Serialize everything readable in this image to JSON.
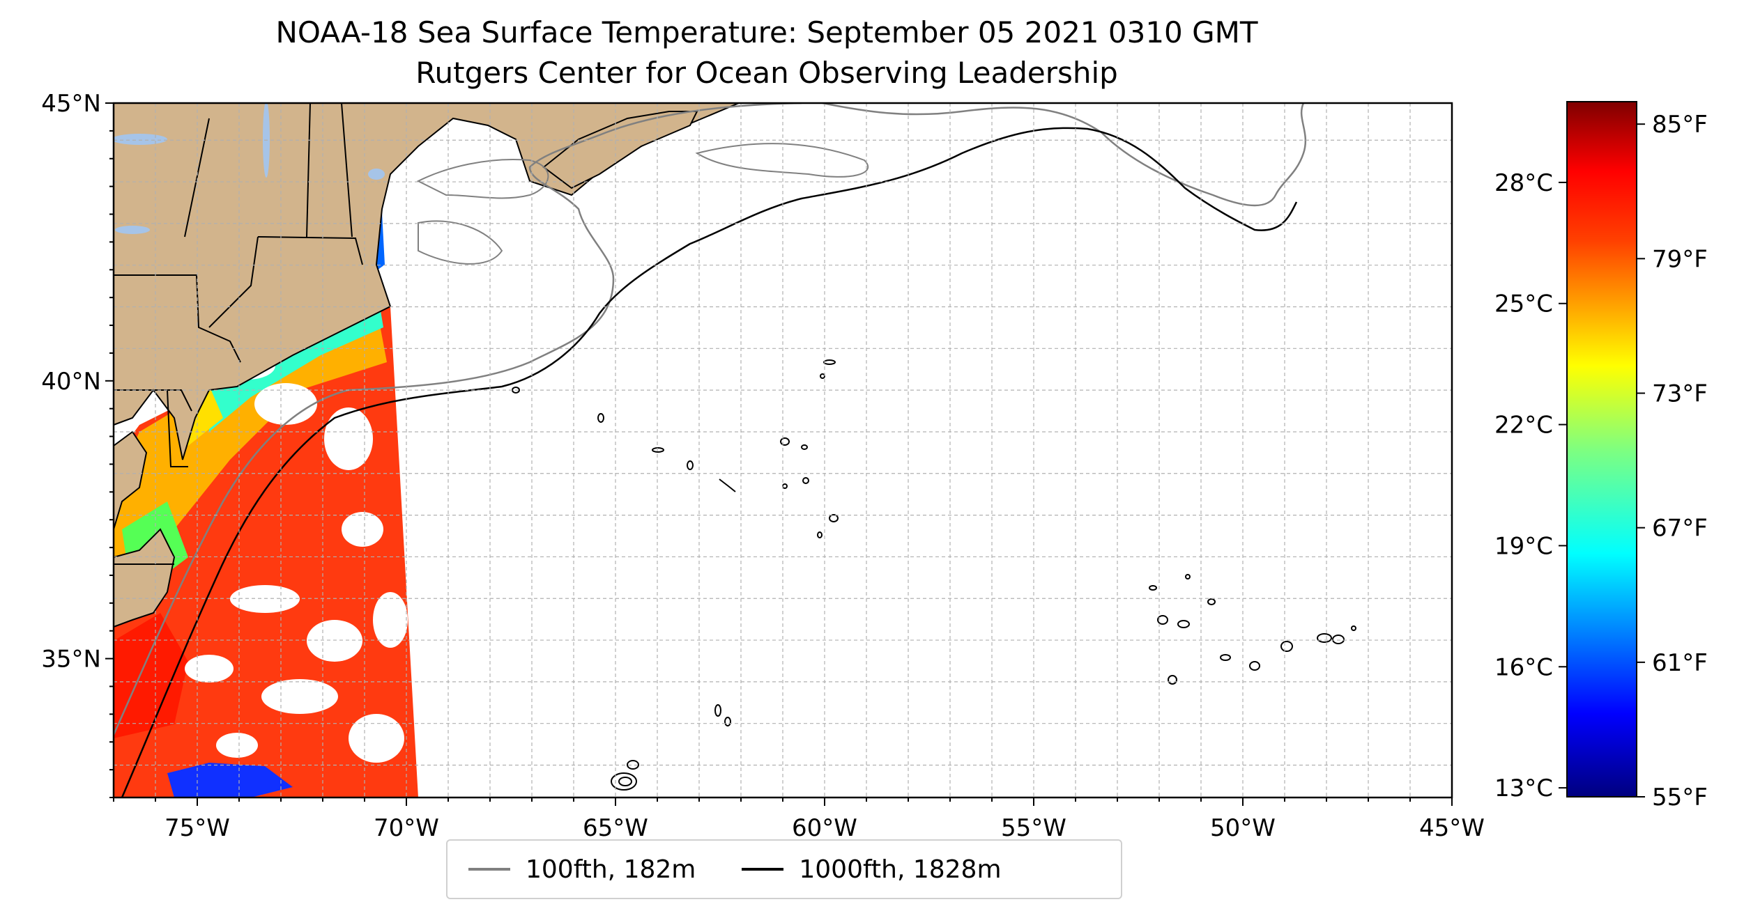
{
  "title": {
    "line1": "NOAA-18 Sea Surface Temperature: September 05 2021 0310 GMT",
    "line2": "Rutgers Center for Ocean Observing Leadership"
  },
  "map": {
    "lon_range": [
      -77,
      -45
    ],
    "lat_range": [
      32.5,
      45
    ],
    "lon_ticks": [
      -75,
      -70,
      -65,
      -60,
      -55,
      -50,
      -45
    ],
    "lon_tick_labels": [
      "75°W",
      "70°W",
      "65°W",
      "60°W",
      "55°W",
      "50°W",
      "45°W"
    ],
    "lat_ticks": [
      35,
      40,
      45
    ],
    "lat_tick_labels": [
      "35°N",
      "40°N",
      "45°N"
    ],
    "gridlines": true,
    "land_color": "#d2b48c",
    "lake_color": "#a6c4e8"
  },
  "colorbar": {
    "colormap": "jet",
    "range_f": [
      55,
      86
    ],
    "celsius_ticks": [
      13,
      16,
      19,
      22,
      25,
      28
    ],
    "celsius_labels": [
      "13°C",
      "16°C",
      "19°C",
      "22°C",
      "25°C",
      "28°C"
    ],
    "fahrenheit_ticks": [
      55,
      61,
      67,
      73,
      79,
      85
    ],
    "fahrenheit_labels": [
      "55°F",
      "61°F",
      "67°F",
      "73°F",
      "79°F",
      "85°F"
    ]
  },
  "legend": {
    "items": [
      {
        "label": "100fth, 182m",
        "color": "#808080"
      },
      {
        "label": "1000fth, 1828m",
        "color": "#000000"
      }
    ]
  }
}
